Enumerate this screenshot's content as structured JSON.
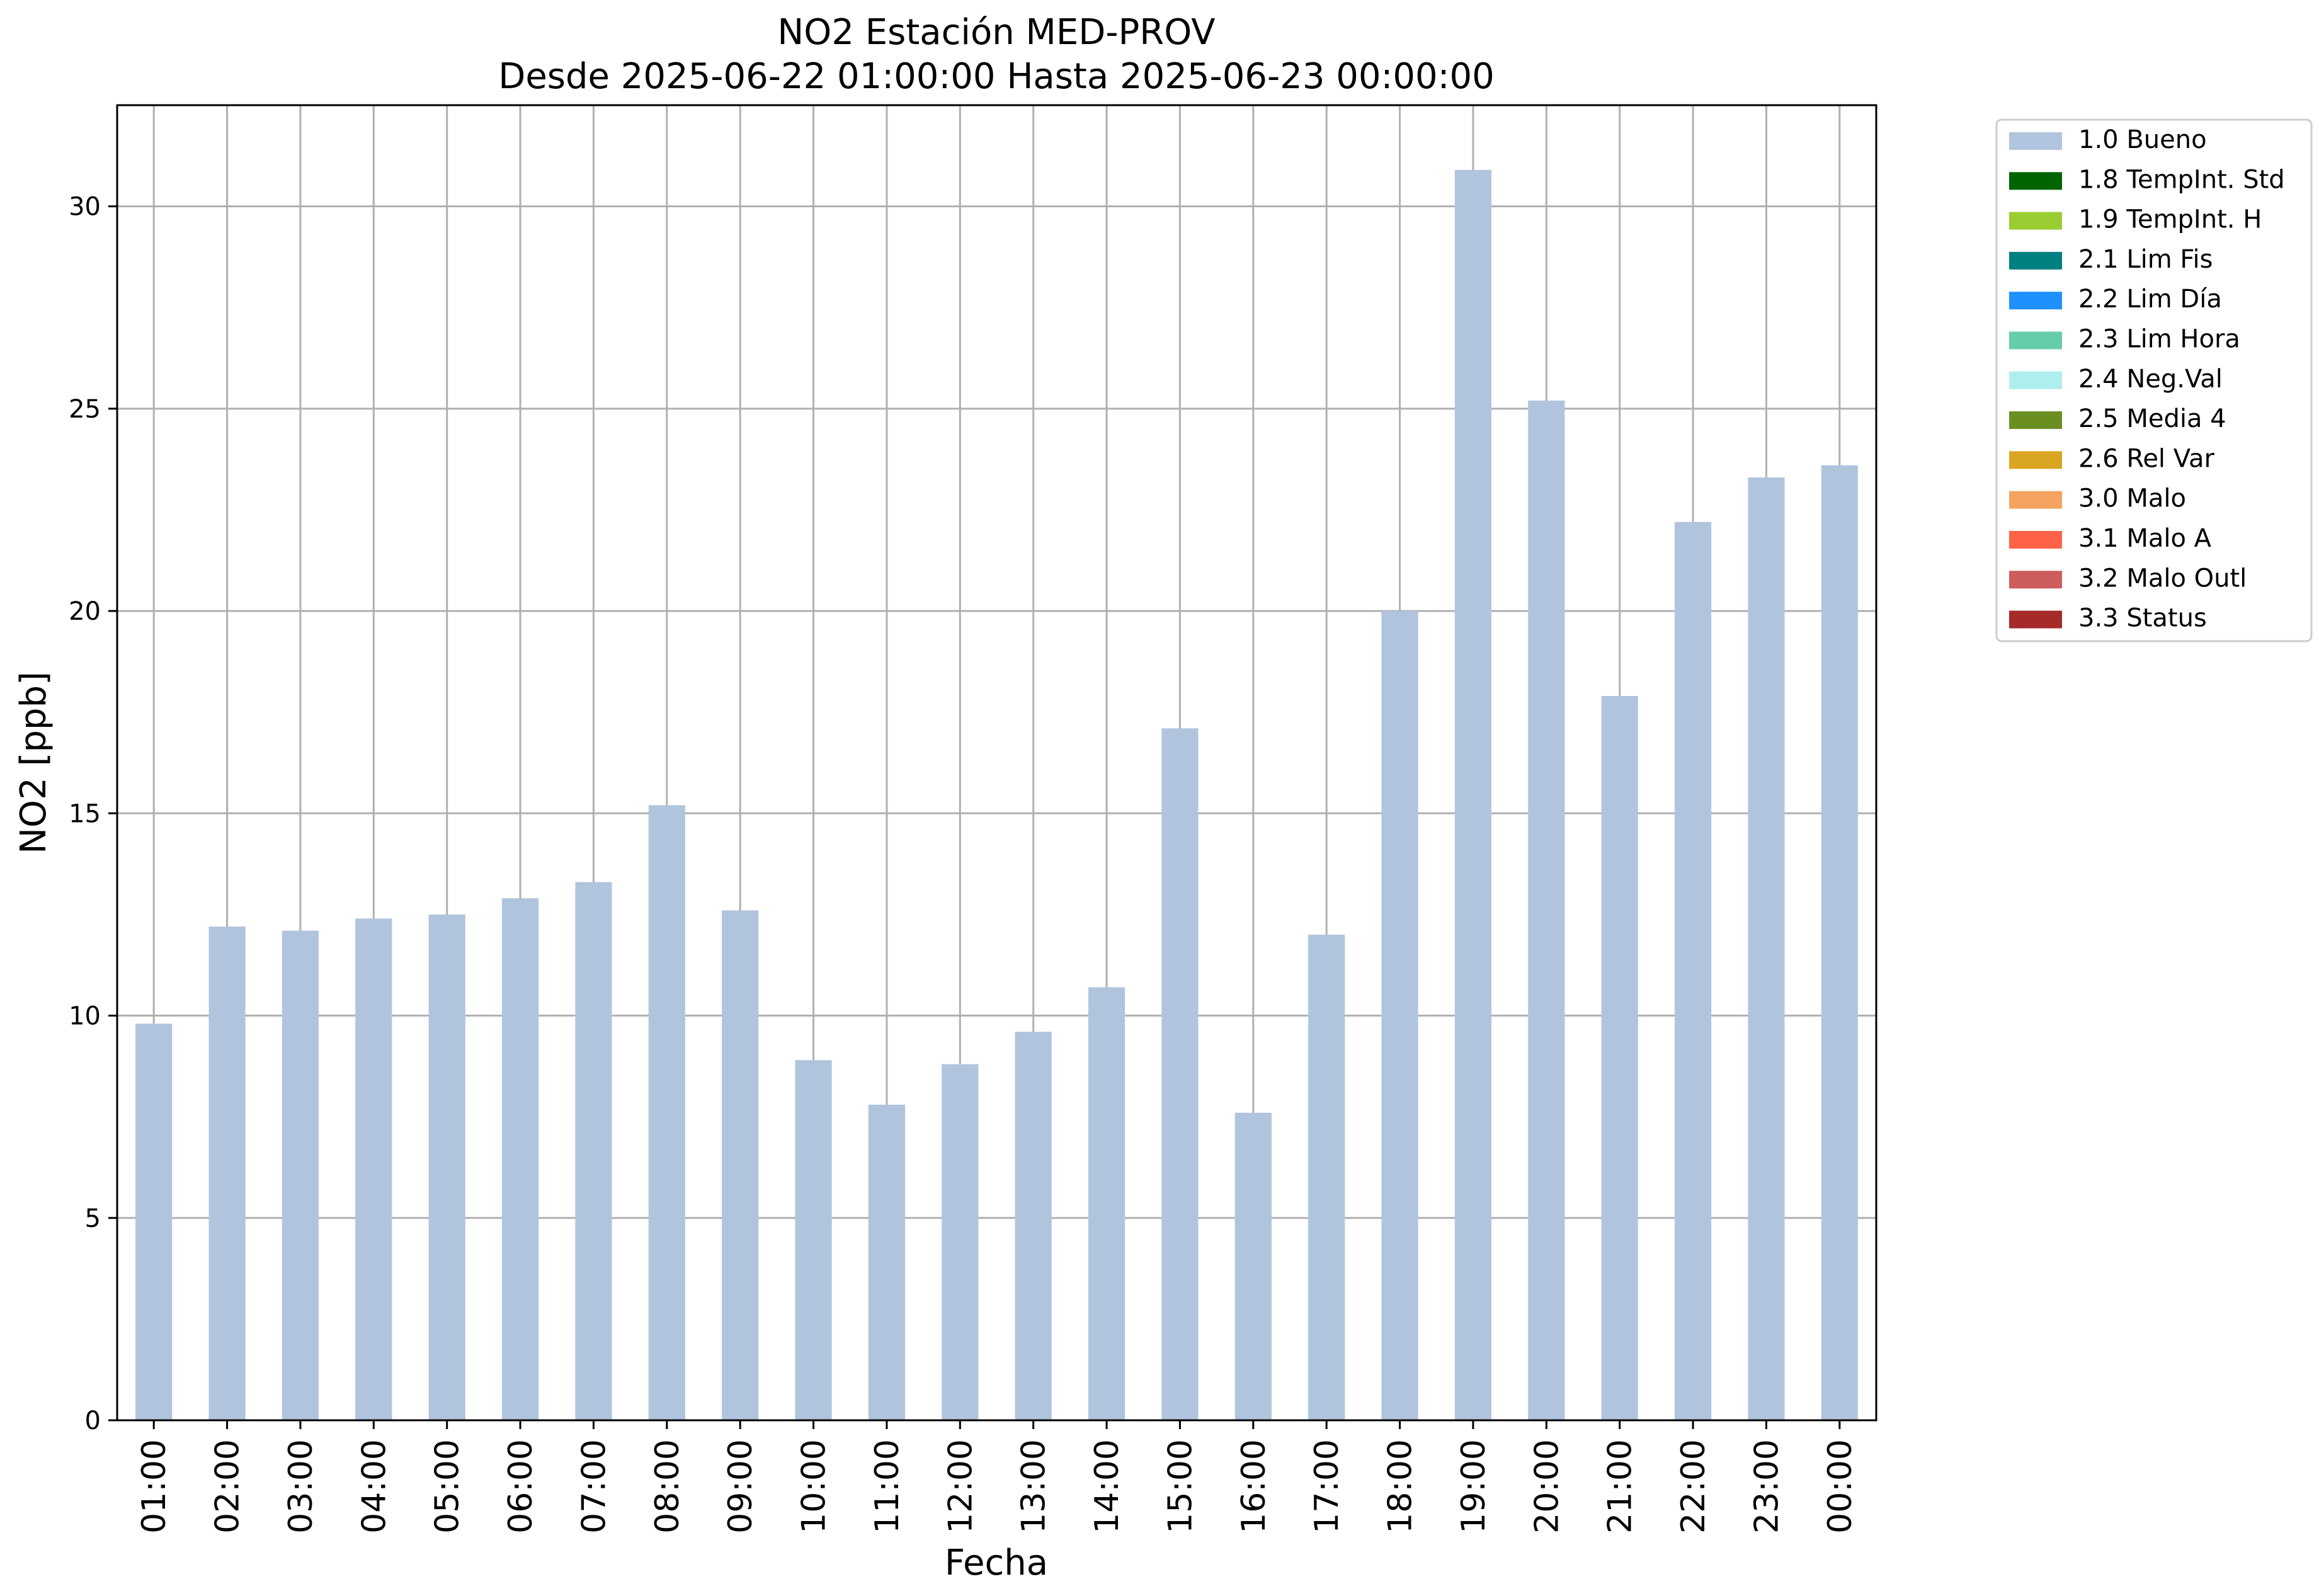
{
  "chart_data": {
    "type": "bar",
    "title_line1": "NO2 Estación MED-PROV",
    "title_line2": "Desde 2025-06-22 01:00:00 Hasta 2025-06-23 00:00:00",
    "xlabel": "Fecha",
    "ylabel": "NO2 [ppb]",
    "ylim": [
      0,
      32.5
    ],
    "yticks": [
      0,
      5,
      10,
      15,
      20,
      25,
      30
    ],
    "grid": true,
    "legend_position": "outside-top-right",
    "categories": [
      "01:00",
      "02:00",
      "03:00",
      "04:00",
      "05:00",
      "06:00",
      "07:00",
      "08:00",
      "09:00",
      "10:00",
      "11:00",
      "12:00",
      "13:00",
      "14:00",
      "15:00",
      "16:00",
      "17:00",
      "18:00",
      "19:00",
      "20:00",
      "21:00",
      "22:00",
      "23:00",
      "00:00"
    ],
    "series": [
      {
        "name": "1.0 Bueno",
        "color": "#b0c4de",
        "values": [
          9.8,
          12.2,
          12.1,
          12.4,
          12.5,
          12.9,
          13.3,
          15.2,
          12.6,
          8.9,
          7.8,
          8.8,
          9.6,
          10.7,
          17.1,
          7.6,
          12.0,
          20.0,
          30.9,
          25.2,
          17.9,
          22.2,
          23.3,
          23.6
        ]
      }
    ],
    "legend": [
      {
        "label": "1.0 Bueno",
        "color": "#b0c4de"
      },
      {
        "label": "1.8 TempInt. Std",
        "color": "#006400"
      },
      {
        "label": "1.9 TempInt. H",
        "color": "#9acd32"
      },
      {
        "label": "2.1 Lim Fis",
        "color": "#008080"
      },
      {
        "label": "2.2 Lim Día",
        "color": "#1e90ff"
      },
      {
        "label": "2.3 Lim Hora",
        "color": "#66cdaa"
      },
      {
        "label": "2.4 Neg.Val",
        "color": "#afeeee"
      },
      {
        "label": "2.5 Media 4",
        "color": "#6b8e23"
      },
      {
        "label": "2.6 Rel Var",
        "color": "#daa520"
      },
      {
        "label": "3.0 Malo",
        "color": "#f4a460"
      },
      {
        "label": "3.1 Malo A",
        "color": "#ff6347"
      },
      {
        "label": "3.2 Malo Outl",
        "color": "#cd5c5c"
      },
      {
        "label": "3.3 Status",
        "color": "#a52a2a"
      }
    ]
  }
}
